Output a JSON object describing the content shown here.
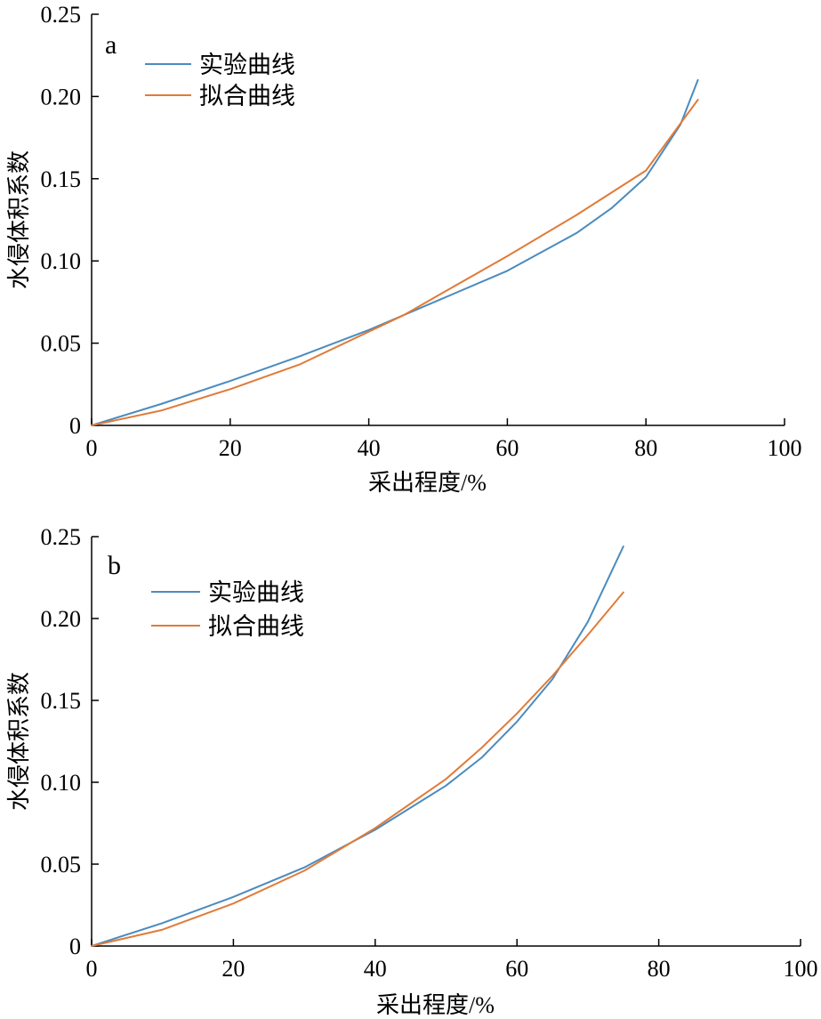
{
  "colors": {
    "experiment": "#4a8bbf",
    "fit": "#e07b39",
    "axis": "#000000"
  },
  "chart_data": [
    {
      "type": "line",
      "panel_label": "a",
      "xlabel": "采出程度/%",
      "ylabel": "水侵体积系数",
      "xlim": [
        0,
        100
      ],
      "ylim": [
        0,
        0.25
      ],
      "xticks": [
        0,
        20,
        40,
        60,
        80,
        100
      ],
      "yticks": [
        0,
        0.05,
        0.1,
        0.15,
        0.2,
        0.25
      ],
      "xtick_labels": [
        "0",
        "20",
        "40",
        "60",
        "80",
        "100"
      ],
      "ytick_labels": [
        "0",
        "0.05",
        "0.10",
        "0.15",
        "0.20",
        "0.25"
      ],
      "legend_position": "top-left",
      "grid": false,
      "series": [
        {
          "name": "实验曲线",
          "color": "#4a8bbf",
          "x": [
            0,
            10,
            20,
            30,
            40,
            45,
            50,
            60,
            70,
            75,
            80,
            85,
            87.5
          ],
          "y": [
            0,
            0.013,
            0.027,
            0.042,
            0.058,
            0.067,
            0.076,
            0.094,
            0.117,
            0.132,
            0.151,
            0.183,
            0.21
          ]
        },
        {
          "name": "拟合曲线",
          "color": "#e07b39",
          "x": [
            0,
            10,
            20,
            30,
            40,
            45,
            50,
            60,
            70,
            80,
            87.5
          ],
          "y": [
            0,
            0.009,
            0.022,
            0.037,
            0.057,
            0.067,
            0.079,
            0.103,
            0.128,
            0.155,
            0.198
          ]
        }
      ]
    },
    {
      "type": "line",
      "panel_label": "b",
      "xlabel": "采出程度/%",
      "ylabel": "水侵体积系数",
      "xlim": [
        0,
        100
      ],
      "ylim": [
        0,
        0.25
      ],
      "xticks": [
        0,
        20,
        40,
        60,
        80,
        100
      ],
      "yticks": [
        0,
        0.05,
        0.1,
        0.15,
        0.2,
        0.25
      ],
      "xtick_labels": [
        "0",
        "20",
        "40",
        "60",
        "80",
        "100"
      ],
      "ytick_labels": [
        "0",
        "0.05",
        "0.10",
        "0.15",
        "0.20",
        "0.25"
      ],
      "legend_position": "top-left",
      "grid": false,
      "series": [
        {
          "name": "实验曲线",
          "color": "#4a8bbf",
          "x": [
            0,
            10,
            20,
            30,
            40,
            50,
            55,
            60,
            65,
            70,
            75
          ],
          "y": [
            0,
            0.014,
            0.03,
            0.048,
            0.071,
            0.098,
            0.115,
            0.137,
            0.163,
            0.198,
            0.244
          ]
        },
        {
          "name": "拟合曲线",
          "color": "#e07b39",
          "x": [
            0,
            10,
            20,
            30,
            40,
            50,
            55,
            60,
            65,
            70,
            75
          ],
          "y": [
            0,
            0.01,
            0.026,
            0.046,
            0.072,
            0.102,
            0.121,
            0.142,
            0.165,
            0.19,
            0.216
          ]
        }
      ]
    }
  ]
}
